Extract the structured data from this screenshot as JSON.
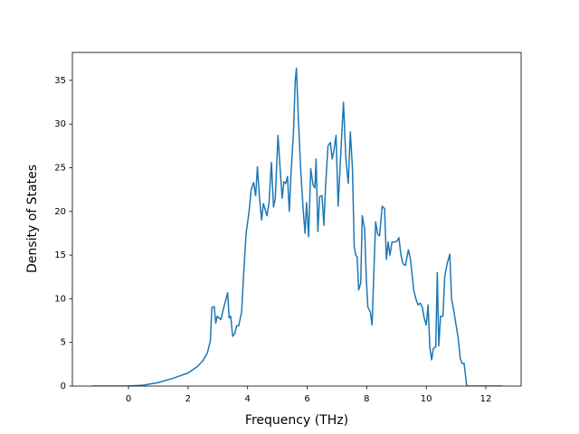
{
  "chart_data": {
    "type": "line",
    "xlabel": "Frequency (THz)",
    "ylabel": "Density of States",
    "xlim": [
      -1.885,
      13.185
    ],
    "ylim": [
      0,
      38.2
    ],
    "xticks": [
      0,
      2,
      4,
      6,
      8,
      10,
      12
    ],
    "yticks": [
      0,
      5,
      10,
      15,
      20,
      25,
      30,
      35
    ],
    "grid": false,
    "series": [
      {
        "color": "#1f77b4",
        "x": [
          -1.2,
          0,
          0.5,
          1.0,
          1.5,
          2.0,
          2.3,
          2.5,
          2.65,
          2.75,
          2.8,
          2.88,
          2.93,
          2.98,
          3.1,
          3.2,
          3.33,
          3.38,
          3.43,
          3.5,
          3.57,
          3.63,
          3.7,
          3.8,
          3.87,
          3.95,
          4.05,
          4.12,
          4.2,
          4.27,
          4.33,
          4.4,
          4.47,
          4.53,
          4.65,
          4.72,
          4.8,
          4.87,
          4.93,
          5.02,
          5.1,
          5.16,
          5.22,
          5.28,
          5.34,
          5.4,
          5.46,
          5.54,
          5.6,
          5.64,
          5.7,
          5.78,
          5.87,
          5.93,
          5.98,
          6.05,
          6.12,
          6.2,
          6.26,
          6.3,
          6.36,
          6.42,
          6.5,
          6.56,
          6.62,
          6.7,
          6.78,
          6.84,
          6.9,
          6.97,
          7.04,
          7.12,
          7.22,
          7.3,
          7.38,
          7.45,
          7.52,
          7.58,
          7.63,
          7.68,
          7.73,
          7.8,
          7.85,
          7.93,
          7.99,
          8.04,
          8.12,
          8.18,
          8.24,
          8.3,
          8.37,
          8.43,
          8.52,
          8.6,
          8.66,
          8.72,
          8.78,
          8.85,
          8.95,
          9.02,
          9.08,
          9.15,
          9.22,
          9.3,
          9.4,
          9.47,
          9.58,
          9.65,
          9.72,
          9.8,
          9.87,
          9.93,
          10.0,
          10.06,
          10.12,
          10.18,
          10.24,
          10.32,
          10.37,
          10.42,
          10.48,
          10.56,
          10.62,
          10.7,
          10.79,
          10.85,
          10.93,
          11.0,
          11.07,
          11.14,
          11.2,
          11.27,
          11.36,
          11.6,
          12.0,
          12.55
        ],
        "values": [
          0,
          0,
          0.1,
          0.4,
          0.9,
          1.5,
          2.2,
          2.9,
          3.8,
          5.2,
          9.0,
          9.1,
          7.2,
          8.0,
          7.6,
          9.0,
          10.7,
          7.8,
          8.0,
          5.7,
          6.0,
          6.9,
          6.9,
          8.5,
          13,
          17.5,
          20,
          22.5,
          23.3,
          21.8,
          25.1,
          21.5,
          19,
          20.9,
          19.5,
          21,
          25.6,
          20.5,
          21.5,
          28.7,
          24.5,
          21.5,
          23.4,
          23.2,
          24.0,
          20.0,
          24.5,
          29,
          35,
          36.4,
          31,
          25,
          20,
          17.5,
          21,
          17.1,
          24.9,
          23,
          22.7,
          26,
          17.7,
          21.7,
          21.8,
          18.4,
          23,
          27.5,
          27.9,
          26,
          27,
          28.7,
          20.6,
          26,
          32.5,
          26,
          23.2,
          29.1,
          25,
          16,
          15,
          14.8,
          11,
          11.8,
          19.5,
          18,
          12,
          9,
          8.5,
          7,
          13,
          18.8,
          17.4,
          17.2,
          20.6,
          20.3,
          14.5,
          16.5,
          15,
          16.5,
          16.5,
          16.6,
          17,
          15,
          14,
          13.8,
          15.6,
          14.5,
          11,
          10,
          9.3,
          9.5,
          9,
          7.8,
          7,
          9.3,
          4.5,
          3,
          4.3,
          4.5,
          13,
          4.6,
          8,
          8,
          12.5,
          14,
          15.1,
          10,
          8.5,
          7,
          5.6,
          3.2,
          2.6,
          2.6,
          0,
          0,
          0,
          0
        ]
      }
    ]
  }
}
